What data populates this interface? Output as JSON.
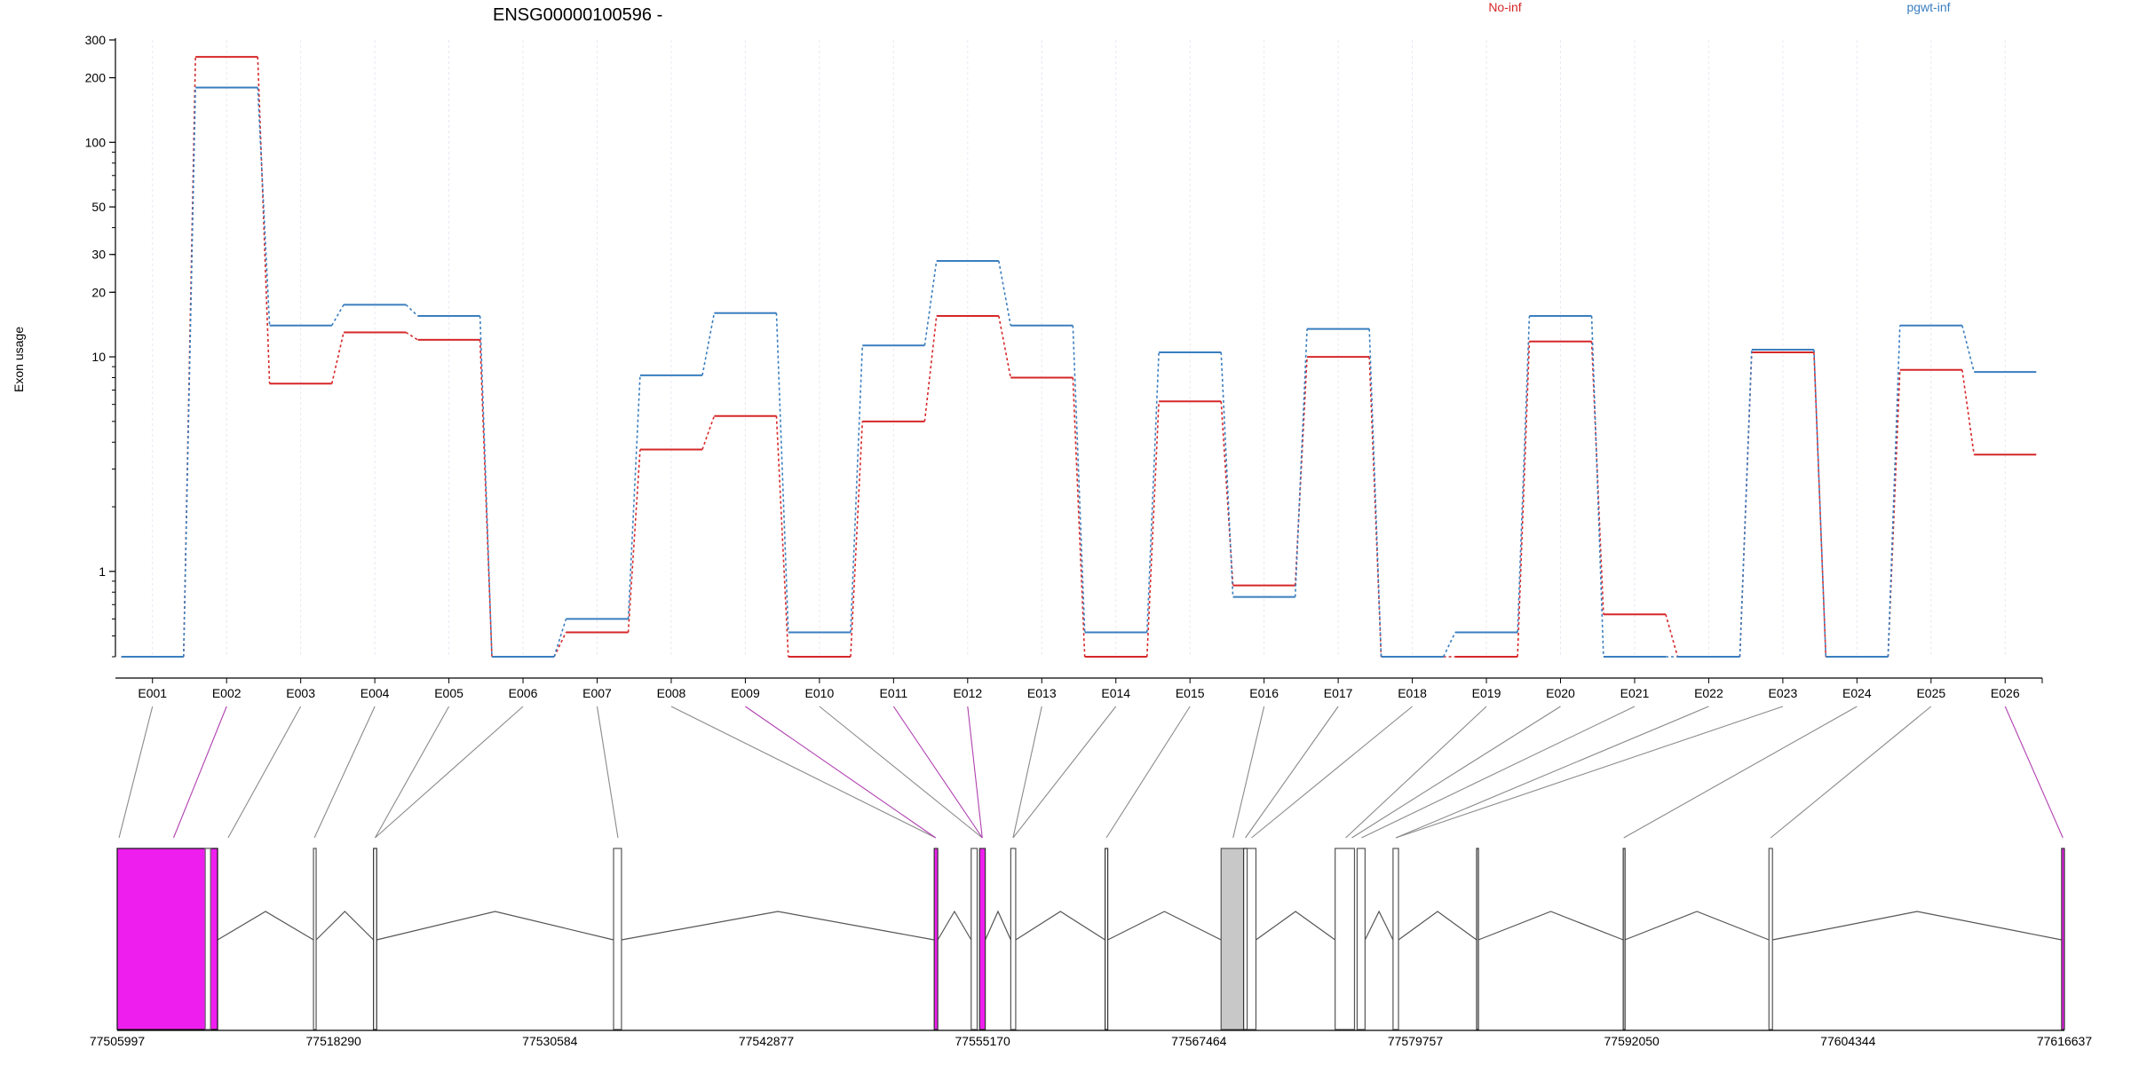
{
  "chart_data": {
    "type": "line",
    "title": "ENSG00000100596 -",
    "ylabel": "Exon usage",
    "xlabel": "",
    "yscale": "log",
    "ylim": [
      0.4,
      300
    ],
    "yticks": [
      1,
      10,
      20,
      30,
      50,
      100,
      200,
      300
    ],
    "ytick_labels": [
      "1",
      "10",
      "20",
      "30",
      "50",
      "100",
      "200",
      "300"
    ],
    "grid": "vertical dotted per exon",
    "legend_position": "top-right",
    "categories": [
      "E001",
      "E002",
      "E003",
      "E004",
      "E005",
      "E006",
      "E007",
      "E008",
      "E009",
      "E010",
      "E011",
      "E012",
      "E013",
      "E014",
      "E015",
      "E016",
      "E017",
      "E018",
      "E019",
      "E020",
      "E021",
      "E022",
      "E023",
      "E024",
      "E025",
      "E026"
    ],
    "series": [
      {
        "name": "No-inf",
        "color": "#d62728",
        "values": [
          0.4,
          250,
          7.5,
          13,
          12,
          0.4,
          0.52,
          3.7,
          5.3,
          0.4,
          5.0,
          15.5,
          8.0,
          0.4,
          6.2,
          0.86,
          10,
          0.4,
          0.4,
          11.8,
          0.63,
          0.4,
          10.5,
          0.4,
          8.7,
          3.5
        ]
      },
      {
        "name": "pgwt-inf",
        "color": "#3a7ebf",
        "values": [
          0.4,
          180,
          14,
          17.5,
          15.5,
          0.4,
          0.6,
          8.2,
          16,
          0.52,
          11.3,
          28,
          14,
          0.52,
          10.5,
          0.76,
          13.5,
          0.4,
          0.52,
          15.5,
          0.4,
          0.4,
          10.8,
          0.4,
          14,
          8.5
        ]
      }
    ],
    "highlighted_exons": [
      "E002",
      "E009",
      "E011",
      "E012",
      "E026"
    ],
    "highlight_color": "#ee1fee",
    "genomic_axis": {
      "range": [
        77505997,
        77616637
      ],
      "tick_labels": [
        "77505997",
        "77518290",
        "77530584",
        "77542877",
        "77555170",
        "77567464",
        "77579757",
        "77592050",
        "77604344",
        "77616637"
      ]
    },
    "exon_segments": [
      {
        "start": 77505997,
        "end": 77511700,
        "fill": "#ee1fee",
        "edge": "#111111"
      },
      {
        "start": 77511000,
        "end": 77511300,
        "fill": "#ffffff",
        "edge": "#666666"
      },
      {
        "start": 77517150,
        "end": 77517300,
        "fill": "#ffffff",
        "edge": "#555555"
      },
      {
        "start": 77520560,
        "end": 77520740,
        "fill": "#ffffff",
        "edge": "#333333"
      },
      {
        "start": 77534200,
        "end": 77534650,
        "fill": "#ffffff",
        "edge": "#555555"
      },
      {
        "start": 77552420,
        "end": 77552620,
        "fill": "#ee1fee",
        "edge": "#333333"
      },
      {
        "start": 77554520,
        "end": 77554860,
        "fill": "#ffffff",
        "edge": "#555555"
      },
      {
        "start": 77555000,
        "end": 77555320,
        "fill": "#ee1fee",
        "edge": "#333333"
      },
      {
        "start": 77556770,
        "end": 77557050,
        "fill": "#ffffff",
        "edge": "#555555"
      },
      {
        "start": 77562130,
        "end": 77562280,
        "fill": "#ffffff",
        "edge": "#333333"
      },
      {
        "start": 77568720,
        "end": 77570100,
        "fill": "#c8c8c8",
        "edge": "#555555"
      },
      {
        "start": 77570000,
        "end": 77570250,
        "fill": "#ffffff",
        "edge": "#333333"
      },
      {
        "start": 77570200,
        "end": 77570700,
        "fill": "#ffffff",
        "edge": "#555555"
      },
      {
        "start": 77575200,
        "end": 77576300,
        "fill": "#ffffff",
        "edge": "#555555"
      },
      {
        "start": 77576450,
        "end": 77576900,
        "fill": "#ffffff",
        "edge": "#555555"
      },
      {
        "start": 77578490,
        "end": 77578800,
        "fill": "#ffffff",
        "edge": "#555555"
      },
      {
        "start": 77583240,
        "end": 77583340,
        "fill": "#ffffff",
        "edge": "#333333"
      },
      {
        "start": 77591570,
        "end": 77591660,
        "fill": "#ffffff",
        "edge": "#333333"
      },
      {
        "start": 77599850,
        "end": 77600050,
        "fill": "#ffffff",
        "edge": "#555555"
      },
      {
        "start": 77616480,
        "end": 77616637,
        "fill": "#ee1fee",
        "edge": "#333333"
      }
    ],
    "exon_links": [
      {
        "exon": "E001",
        "pos": 77506100
      },
      {
        "exon": "E002",
        "pos": 77509200
      },
      {
        "exon": "E003",
        "pos": 77512300
      },
      {
        "exon": "E004",
        "pos": 77517200
      },
      {
        "exon": "E005",
        "pos": 77520650
      },
      {
        "exon": "E006",
        "pos": 77520650
      },
      {
        "exon": "E007",
        "pos": 77534450
      },
      {
        "exon": "E008",
        "pos": 77552500
      },
      {
        "exon": "E009",
        "pos": 77552500
      },
      {
        "exon": "E010",
        "pos": 77555150
      },
      {
        "exon": "E011",
        "pos": 77555150
      },
      {
        "exon": "E012",
        "pos": 77555150
      },
      {
        "exon": "E013",
        "pos": 77556900
      },
      {
        "exon": "E014",
        "pos": 77556900
      },
      {
        "exon": "E015",
        "pos": 77562200
      },
      {
        "exon": "E016",
        "pos": 77569400
      },
      {
        "exon": "E017",
        "pos": 77570100
      },
      {
        "exon": "E018",
        "pos": 77570450
      },
      {
        "exon": "E019",
        "pos": 77575800
      },
      {
        "exon": "E020",
        "pos": 77576150
      },
      {
        "exon": "E021",
        "pos": 77576700
      },
      {
        "exon": "E022",
        "pos": 77578650
      },
      {
        "exon": "E023",
        "pos": 77578650
      },
      {
        "exon": "E024",
        "pos": 77591600
      },
      {
        "exon": "E025",
        "pos": 77599950
      },
      {
        "exon": "E026",
        "pos": 77616550
      }
    ]
  }
}
